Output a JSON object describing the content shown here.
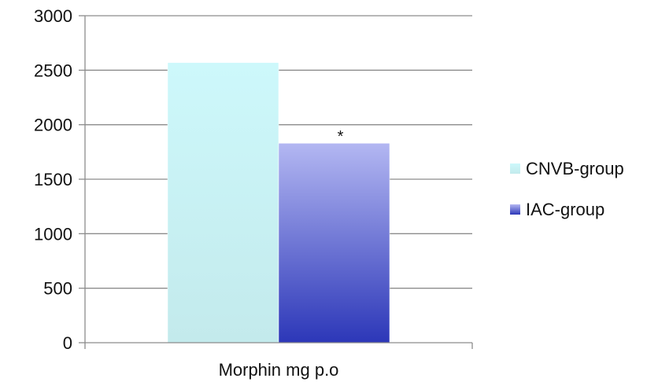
{
  "chart_data": {
    "type": "bar",
    "categories": [
      "Morphin mg p.o"
    ],
    "series": [
      {
        "name": "CNVB-group",
        "values": [
          2570
        ],
        "color_top": "#cdf8fb",
        "color_bottom": "#c3eaec"
      },
      {
        "name": "IAC-group",
        "values": [
          1830
        ],
        "color_top": "#b3b7f2",
        "color_bottom": "#2c37b8",
        "annotation": "*"
      }
    ],
    "yticks": [
      "0",
      "500",
      "1000",
      "1500",
      "2000",
      "2500",
      "3000"
    ],
    "ylim": [
      0,
      3000
    ],
    "grid": true,
    "legend_position": "right"
  }
}
